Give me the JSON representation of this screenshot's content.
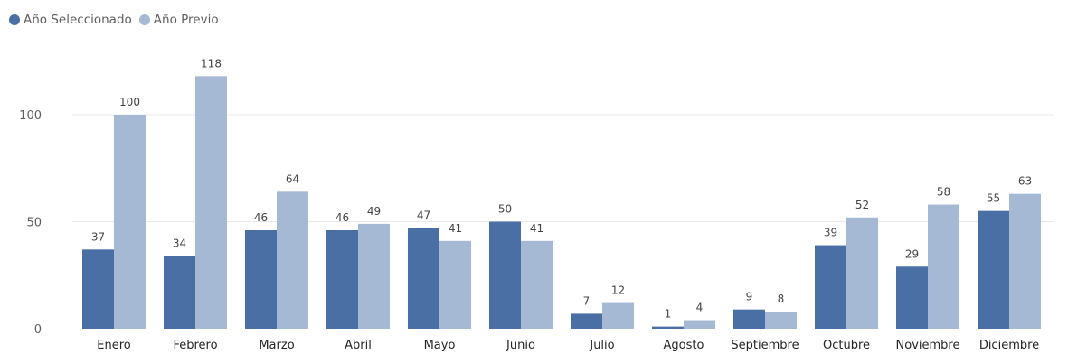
{
  "chart_data": {
    "type": "bar",
    "categories": [
      "Enero",
      "Febrero",
      "Marzo",
      "Abril",
      "Mayo",
      "Junio",
      "Julio",
      "Agosto",
      "Septiembre",
      "Octubre",
      "Noviembre",
      "Diciembre"
    ],
    "series": [
      {
        "name": "Año Seleccionado",
        "color": "#4a6fa5",
        "values": [
          37,
          34,
          46,
          46,
          47,
          50,
          7,
          1,
          9,
          39,
          29,
          55
        ]
      },
      {
        "name": "Año Previo",
        "color": "#a5b8d4",
        "values": [
          100,
          118,
          64,
          49,
          41,
          41,
          12,
          4,
          8,
          52,
          58,
          63
        ]
      }
    ],
    "yticks": [
      0,
      50,
      100
    ],
    "ylim": [
      0,
      118
    ],
    "grid": true,
    "legend_position": "top-left",
    "data_labels": true
  }
}
